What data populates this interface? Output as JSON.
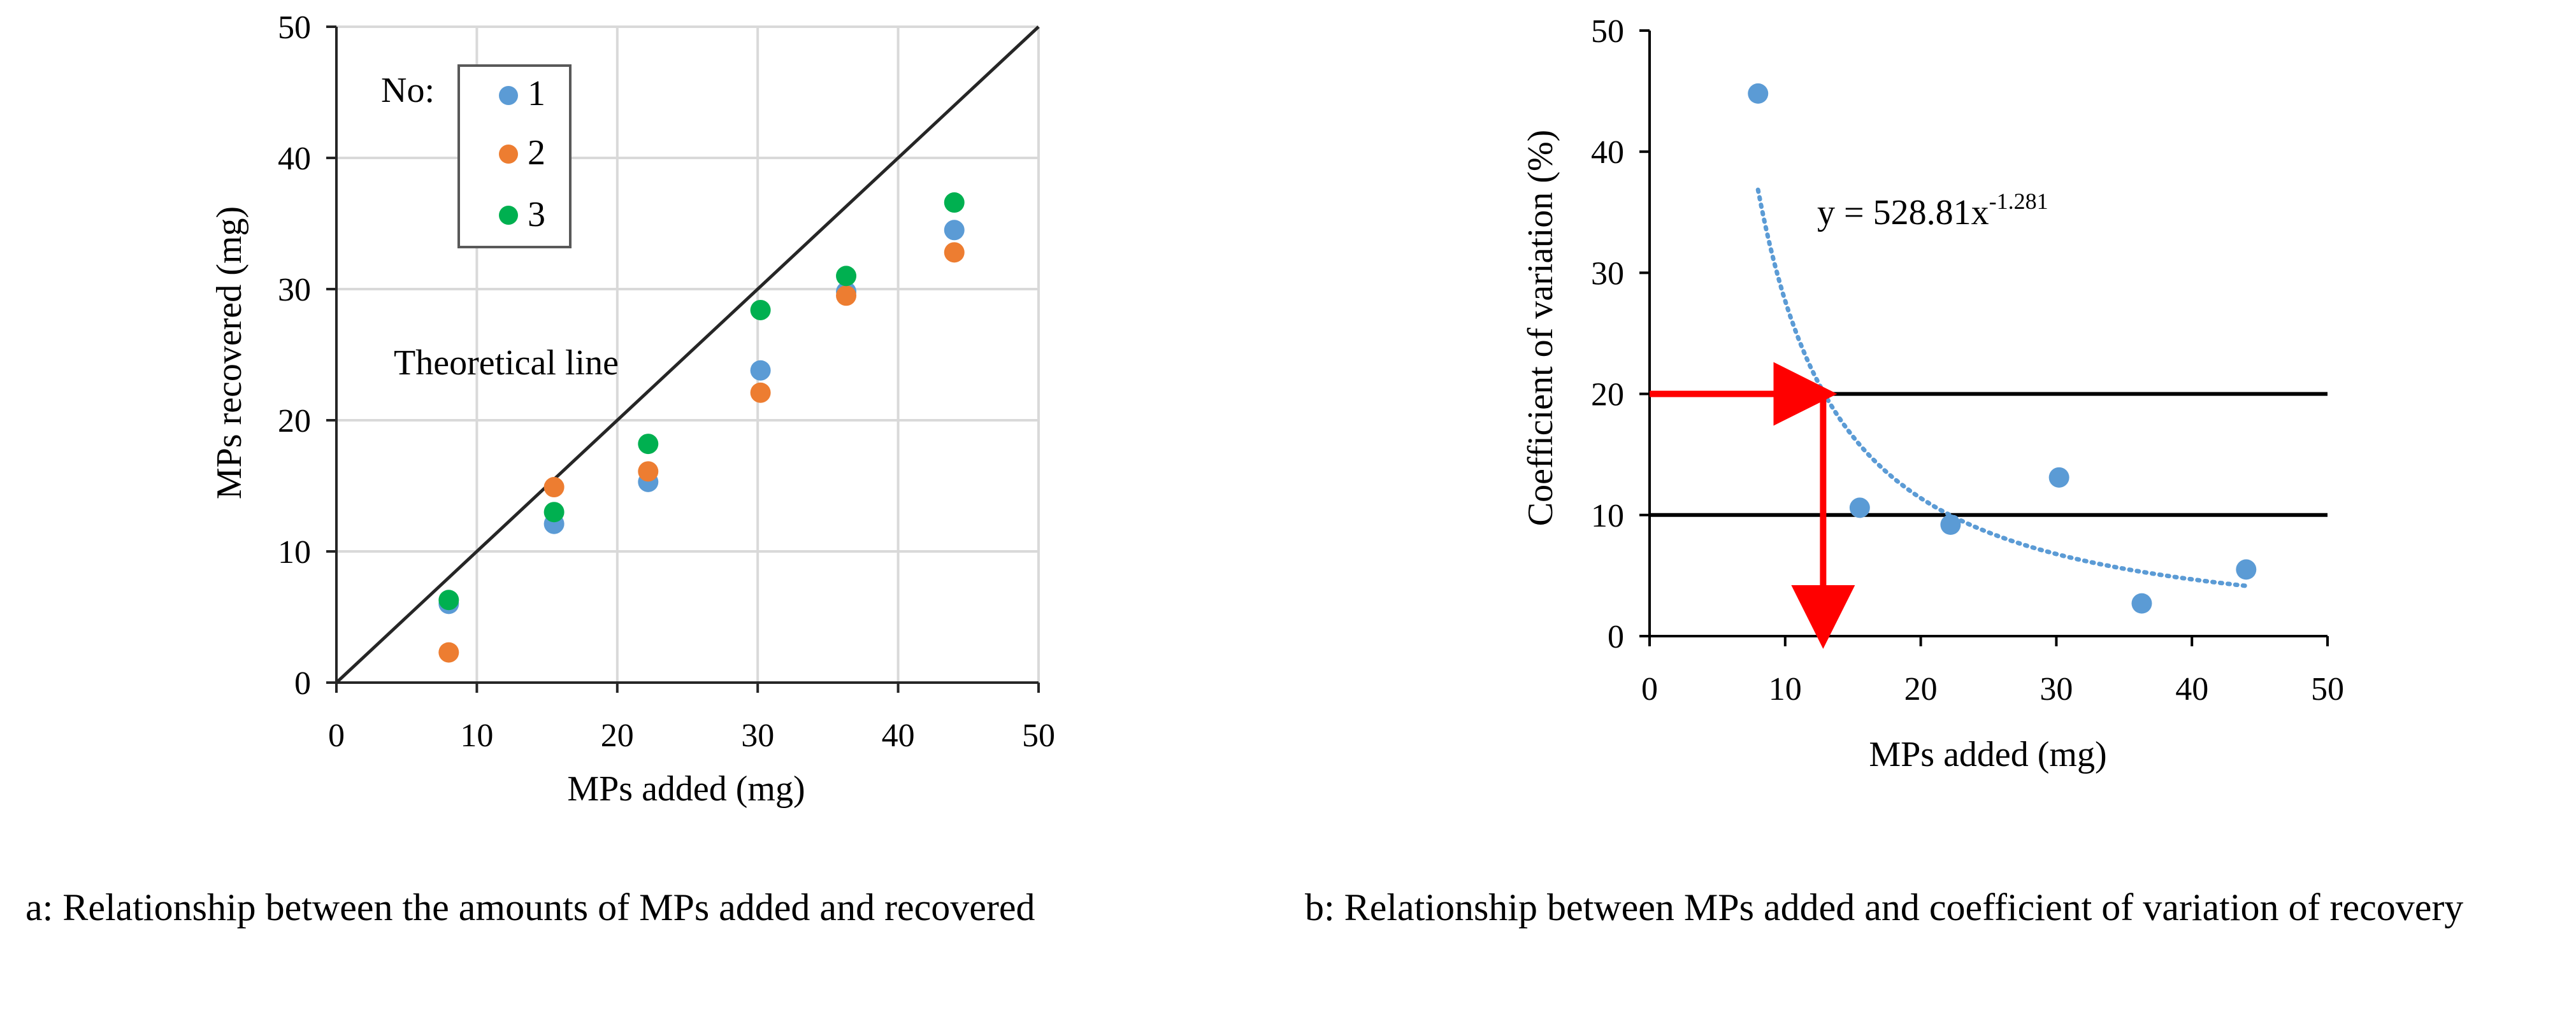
{
  "chart_data": [
    {
      "type": "scatter",
      "xlabel": "MPs added (mg)",
      "ylabel": "MPs recovered (mg)",
      "xlim": [
        0,
        50
      ],
      "ylim": [
        0,
        50
      ],
      "x_ticks": [
        "0",
        "10",
        "20",
        "30",
        "40",
        "50"
      ],
      "y_ticks": [
        "0",
        "10",
        "20",
        "30",
        "40",
        "50"
      ],
      "grid": true,
      "legend": {
        "title": "No:",
        "position": "top-left"
      },
      "series": [
        {
          "name": "1",
          "color": "#5B9BD5",
          "points": [
            [
              8,
              6.0
            ],
            [
              15.5,
              12.1
            ],
            [
              22.2,
              15.3
            ],
            [
              30.2,
              23.8
            ],
            [
              36.3,
              29.8
            ],
            [
              44,
              34.5
            ]
          ]
        },
        {
          "name": "2",
          "color": "#ED7D31",
          "points": [
            [
              8,
              2.3
            ],
            [
              15.5,
              14.9
            ],
            [
              22.2,
              16.1
            ],
            [
              30.2,
              22.1
            ],
            [
              36.3,
              29.5
            ],
            [
              44,
              32.8
            ]
          ]
        },
        {
          "name": "3",
          "color": "#00B050",
          "points": [
            [
              8,
              6.3
            ],
            [
              15.5,
              13.0
            ],
            [
              22.2,
              18.2
            ],
            [
              30.2,
              28.4
            ],
            [
              36.3,
              31.0
            ],
            [
              44,
              36.6
            ]
          ]
        }
      ],
      "reference_line": {
        "label": "Theoretical line",
        "from": [
          0,
          0
        ],
        "to": [
          50,
          50
        ],
        "color": "#262626"
      }
    },
    {
      "type": "scatter",
      "xlabel": "MPs added (mg)",
      "ylabel": "Coefficient of variation (%)",
      "xlim": [
        0,
        50
      ],
      "ylim": [
        0,
        50
      ],
      "x_ticks": [
        "0",
        "10",
        "20",
        "30",
        "40",
        "50"
      ],
      "y_ticks": [
        "0",
        "10",
        "20",
        "30",
        "40",
        "50"
      ],
      "grid": false,
      "series": [
        {
          "color": "#5B9BD5",
          "points": [
            [
              8,
              44.8
            ],
            [
              15.5,
              10.6
            ],
            [
              22.2,
              9.2
            ],
            [
              30.2,
              13.1
            ],
            [
              36.3,
              2.7
            ],
            [
              44,
              5.5
            ]
          ]
        }
      ],
      "trendline": {
        "equation_prefix": "y = 528.81x",
        "equation_exponent": "-1.281",
        "coefficient": 528.81,
        "exponent": -1.281,
        "x_range": [
          8,
          44
        ],
        "color": "#5B9BD5"
      },
      "horizontal_lines": [
        20,
        10
      ],
      "arrow": {
        "from_y": 20,
        "at_x": 12.8,
        "color": "#FF0000"
      }
    }
  ],
  "captions": {
    "a": "a: Relationship between the amounts of MPs added and recovered",
    "b": "b: Relationship between MPs added and coefficient of variation of recovery"
  }
}
